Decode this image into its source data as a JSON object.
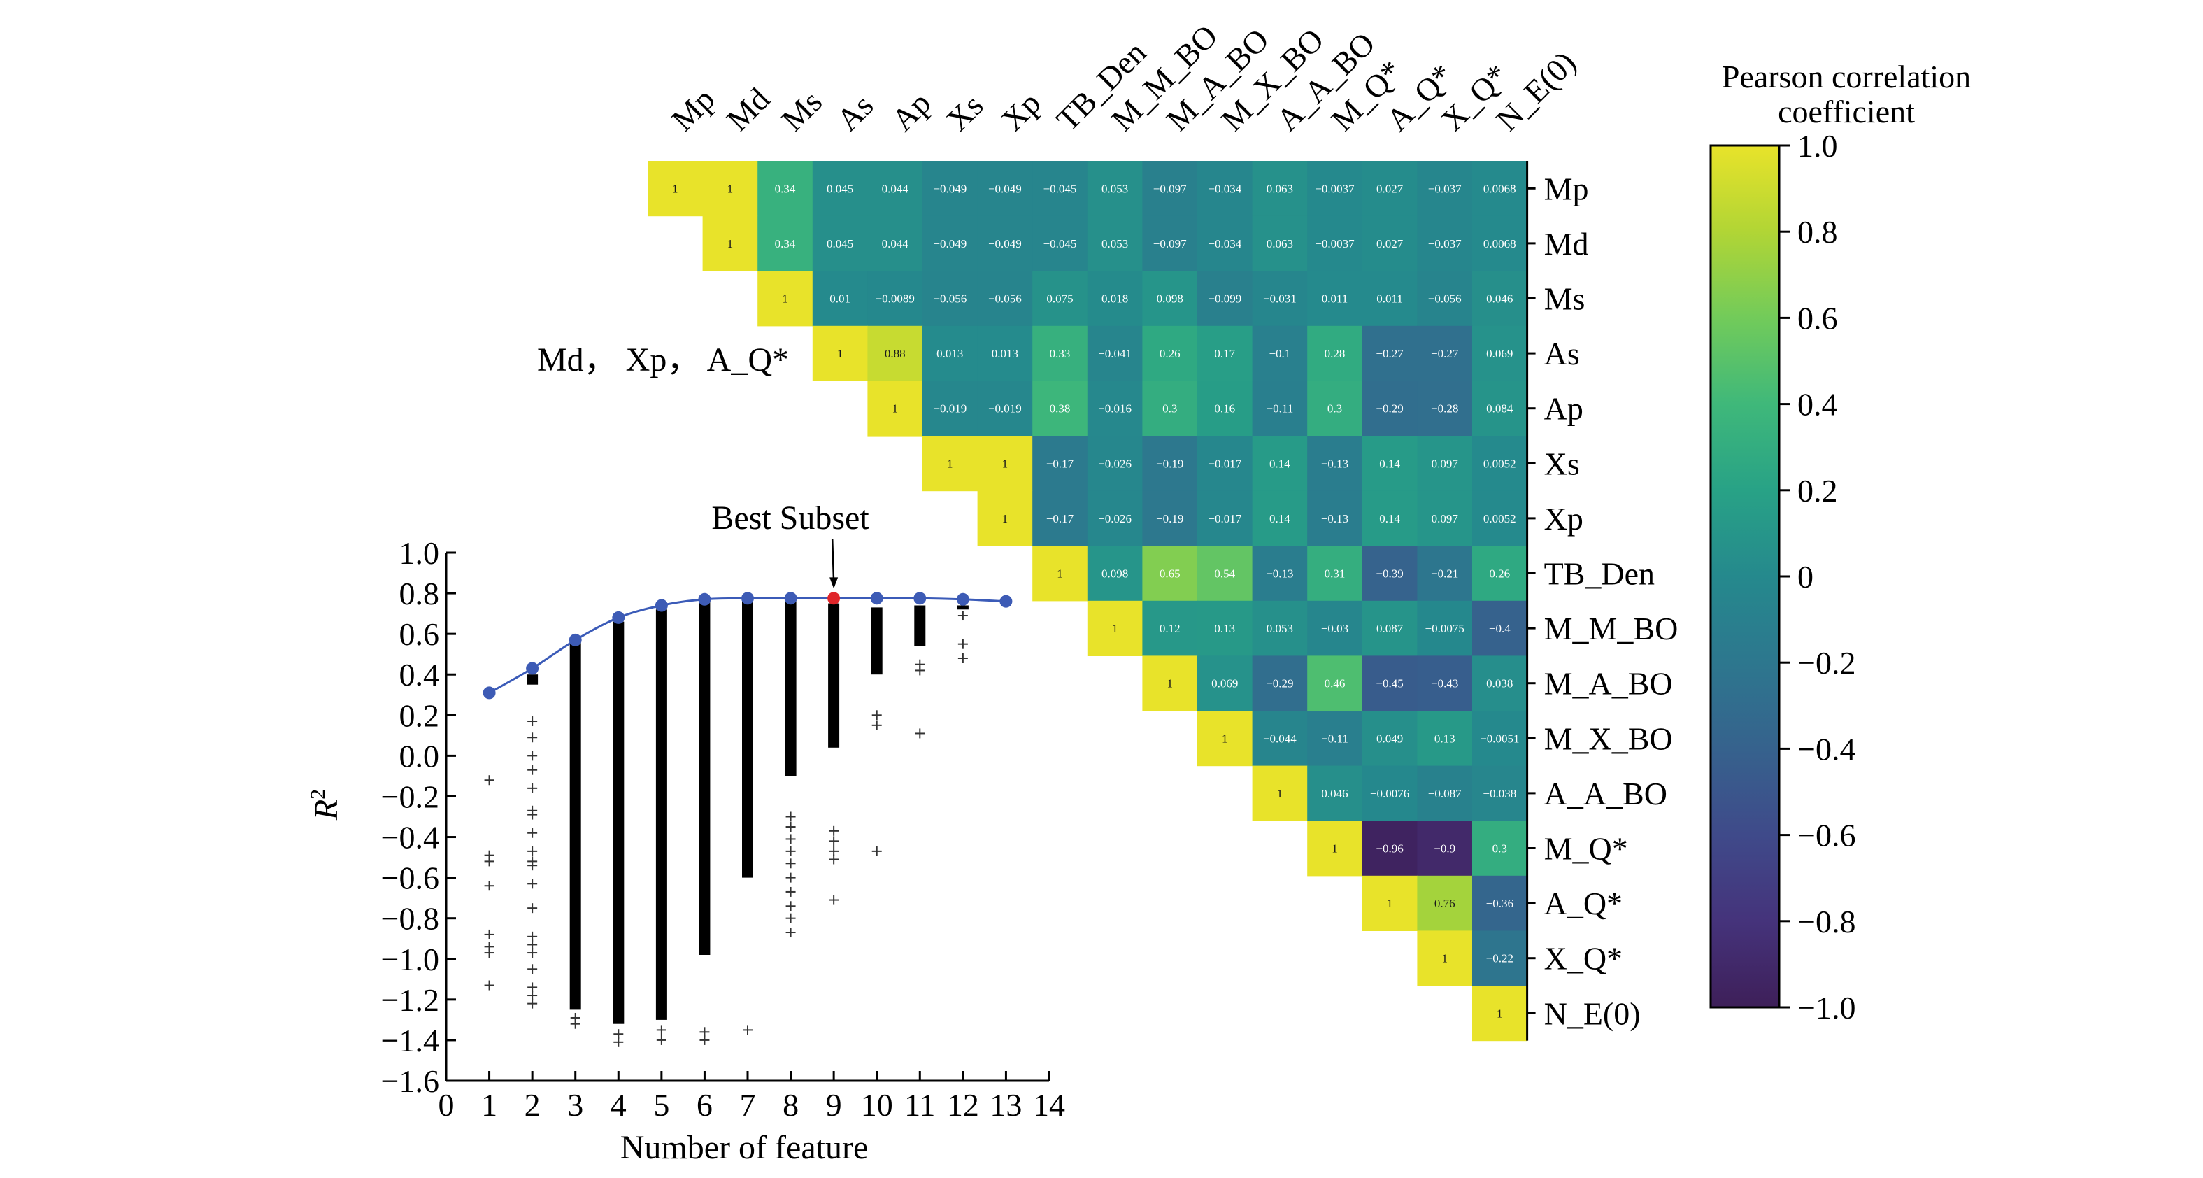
{
  "chart_data": [
    {
      "type": "heatmap",
      "title": "",
      "labels": [
        "Mp",
        "Md",
        "Ms",
        "As",
        "Ap",
        "Xs",
        "Xp",
        "TB_Den",
        "M_M_BO",
        "M_A_BO",
        "M_X_BO",
        "A_A_BO",
        "M_Q*",
        "A_Q*",
        "X_Q*",
        "N_E(0)"
      ],
      "upper_triangle_values": [
        [
          "1",
          "1",
          "0.34",
          "0.045",
          "0.044",
          "−0.049",
          "−0.049",
          "−0.045",
          "0.053",
          "−0.097",
          "−0.034",
          "0.063",
          "−0.0037",
          "0.027",
          "−0.037",
          "0.0068"
        ],
        [
          "1",
          "0.34",
          "0.045",
          "0.044",
          "−0.049",
          "−0.049",
          "−0.045",
          "0.053",
          "−0.097",
          "−0.034",
          "0.063",
          "−0.0037",
          "0.027",
          "−0.037",
          "0.0068"
        ],
        [
          "1",
          "0.01",
          "−0.0089",
          "−0.056",
          "−0.056",
          "0.075",
          "0.018",
          "0.098",
          "−0.099",
          "−0.031",
          "0.011",
          "0.011",
          "−0.056",
          "0.046"
        ],
        [
          "1",
          "0.88",
          "0.013",
          "0.013",
          "0.33",
          "−0.041",
          "0.26",
          "0.17",
          "−0.1",
          "0.28",
          "−0.27",
          "−0.27",
          "0.069"
        ],
        [
          "1",
          "−0.019",
          "−0.019",
          "0.38",
          "−0.016",
          "0.3",
          "0.16",
          "−0.11",
          "0.3",
          "−0.29",
          "−0.28",
          "0.084"
        ],
        [
          "1",
          "1",
          "−0.17",
          "−0.026",
          "−0.19",
          "−0.017",
          "0.14",
          "−0.13",
          "0.14",
          "0.097",
          "0.0052"
        ],
        [
          "1",
          "−0.17",
          "−0.026",
          "−0.19",
          "−0.017",
          "0.14",
          "−0.13",
          "0.14",
          "0.097",
          "0.0052"
        ],
        [
          "1",
          "0.098",
          "0.65",
          "0.54",
          "−0.13",
          "0.31",
          "−0.39",
          "−0.21",
          "0.26"
        ],
        [
          "1",
          "0.12",
          "0.13",
          "0.053",
          "−0.03",
          "0.087",
          "−0.0075",
          "−0.4"
        ],
        [
          "1",
          "0.069",
          "−0.29",
          "0.46",
          "−0.45",
          "−0.43",
          "0.038"
        ],
        [
          "1",
          "−0.044",
          "−0.11",
          "0.049",
          "0.13",
          "−0.0051"
        ],
        [
          "1",
          "0.046",
          "−0.0076",
          "−0.087",
          "−0.038"
        ],
        [
          "1",
          "−0.96",
          "−0.9",
          "0.3"
        ],
        [
          "1",
          "0.76",
          "−0.36"
        ],
        [
          "1",
          "−0.22"
        ],
        [
          "1"
        ]
      ],
      "colorbar": {
        "label_line1": "Pearson correlation",
        "label_line2": "coefficient",
        "range": [
          -1.0,
          1.0
        ],
        "ticks": [
          "1.0",
          "0.8",
          "0.6",
          "0.4",
          "0.2",
          "0",
          "−0.2",
          "−0.4",
          "−0.6",
          "−0.8",
          "−1.0"
        ],
        "colors": [
          "#3e1f59",
          "#45337b",
          "#3f4a8a",
          "#36628d",
          "#2d778e",
          "#25898d",
          "#28a286",
          "#3fb87a",
          "#72cb5a",
          "#b1d535",
          "#e8e32a"
        ]
      },
      "annotation": "Md， Xp， A_Q*"
    },
    {
      "type": "scatter",
      "title": "",
      "xlabel": "Number of feature",
      "ylabel": "R",
      "ylabel_sup": "2",
      "xlim": [
        0,
        14
      ],
      "ylim": [
        -1.6,
        1.0
      ],
      "xticks": [
        "0",
        "1",
        "2",
        "3",
        "4",
        "5",
        "6",
        "7",
        "8",
        "9",
        "10",
        "11",
        "12",
        "13",
        "14"
      ],
      "yticks": [
        "1.0",
        "0.8",
        "0.6",
        "0.4",
        "0.2",
        "0.0",
        "−0.2",
        "−0.4",
        "−0.6",
        "−0.8",
        "−1.0",
        "−1.2",
        "−1.4",
        "−1.6"
      ],
      "best_line": {
        "x": [
          1,
          2,
          3,
          4,
          5,
          6,
          7,
          8,
          9,
          10,
          11,
          12,
          13
        ],
        "y": [
          0.31,
          0.43,
          0.57,
          0.68,
          0.74,
          0.77,
          0.775,
          0.775,
          0.775,
          0.775,
          0.775,
          0.77,
          0.76
        ]
      },
      "best_subset": {
        "x": 9,
        "y": 0.775,
        "label": "Best Subset"
      },
      "columns": [
        {
          "x": 1,
          "outliers": [
            -0.12,
            -0.49,
            -0.52,
            -0.64,
            -0.88,
            -0.94,
            -0.97,
            -1.13
          ]
        },
        {
          "x": 2,
          "range": [
            0.4,
            0.35
          ],
          "outliers": [
            0.17,
            0.09,
            0.0,
            -0.07,
            -0.16,
            -0.27,
            -0.29,
            -0.38,
            -0.47,
            -0.52,
            -0.54,
            -0.63,
            -0.75,
            -0.89,
            -0.93,
            -0.97,
            -1.05,
            -1.14,
            -1.18,
            -1.22
          ]
        },
        {
          "x": 3,
          "range": [
            0.56,
            -1.25
          ],
          "outliers": [
            -1.29,
            -1.32
          ]
        },
        {
          "x": 4,
          "range": [
            0.66,
            -1.32
          ],
          "outliers": [
            -1.37,
            -1.41
          ]
        },
        {
          "x": 5,
          "range": [
            0.72,
            -1.3
          ],
          "outliers": [
            -1.35,
            -1.4
          ]
        },
        {
          "x": 6,
          "range": [
            0.76,
            -0.98
          ],
          "outliers": [
            -1.36,
            -1.4
          ]
        },
        {
          "x": 7,
          "range": [
            0.77,
            -0.6
          ],
          "outliers": [
            -1.35
          ]
        },
        {
          "x": 8,
          "range": [
            0.77,
            -0.1
          ],
          "outliers": [
            -0.3,
            -0.35,
            -0.41,
            -0.47,
            -0.53,
            -0.6,
            -0.67,
            -0.74,
            -0.8,
            -0.87
          ]
        },
        {
          "x": 9,
          "range": [
            0.75,
            0.04
          ],
          "outliers": [
            -0.37,
            -0.42,
            -0.47,
            -0.51,
            -0.71
          ]
        },
        {
          "x": 10,
          "range": [
            0.73,
            0.4
          ],
          "outliers": [
            0.2,
            0.15,
            -0.47
          ]
        },
        {
          "x": 11,
          "range": [
            0.74,
            0.54
          ],
          "outliers": [
            0.45,
            0.42,
            0.11
          ]
        },
        {
          "x": 12,
          "range": [
            0.74,
            0.72
          ],
          "outliers": [
            0.69,
            0.55,
            0.48
          ]
        },
        {
          "x": 13,
          "range": [
            0.76,
            0.76
          ],
          "outliers": []
        }
      ]
    }
  ]
}
